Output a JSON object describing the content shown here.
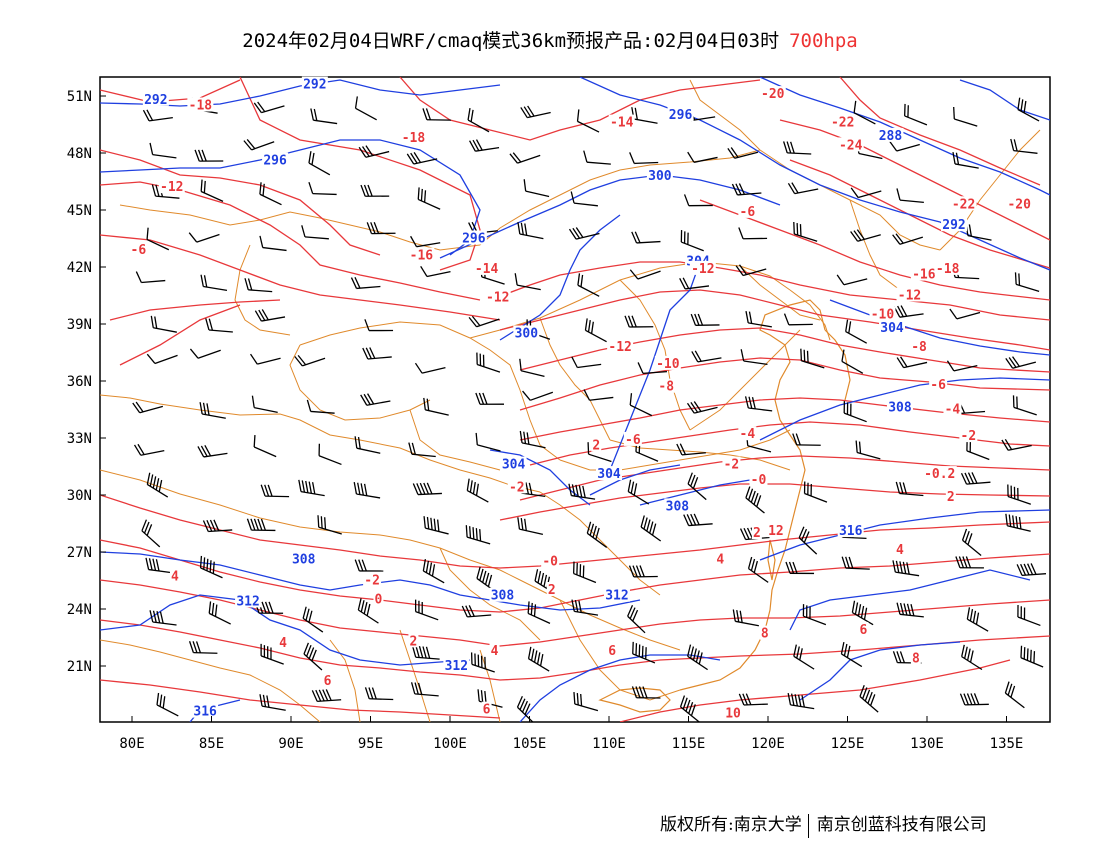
{
  "title": {
    "main": "2024年02月04日WRF/cmaq模式36km预报产品:02月04日03时",
    "level": "700hpa"
  },
  "map": {
    "lon_labels": [
      "80E",
      "85E",
      "90E",
      "95E",
      "100E",
      "105E",
      "110E",
      "115E",
      "120E",
      "125E",
      "130E",
      "135E"
    ],
    "lat_labels": [
      "51N",
      "48N",
      "45N",
      "42N",
      "39N",
      "36N",
      "33N",
      "30N",
      "27N",
      "24N",
      "21N"
    ],
    "colors": {
      "temperature": "#e8383b",
      "geopotential": "#1f3fe0",
      "boundary": "#e08a2c",
      "wind": "#000000"
    },
    "geopotential_labels": [
      {
        "text": "292",
        "lon": 81.5,
        "lat": 50.8
      },
      {
        "text": "292",
        "lon": 91.5,
        "lat": 51.6
      },
      {
        "text": "296",
        "lon": 89.0,
        "lat": 47.6
      },
      {
        "text": "296",
        "lon": 101.5,
        "lat": 43.5
      },
      {
        "text": "296",
        "lon": 114.5,
        "lat": 50.0
      },
      {
        "text": "300",
        "lon": 113.2,
        "lat": 46.8
      },
      {
        "text": "288",
        "lon": 127.7,
        "lat": 48.9
      },
      {
        "text": "292",
        "lon": 131.7,
        "lat": 44.2
      },
      {
        "text": "304",
        "lon": 115.6,
        "lat": 42.3
      },
      {
        "text": "300",
        "lon": 104.8,
        "lat": 38.5
      },
      {
        "text": "304",
        "lon": 127.8,
        "lat": 38.8
      },
      {
        "text": "308",
        "lon": 128.3,
        "lat": 34.6
      },
      {
        "text": "304",
        "lon": 104.0,
        "lat": 31.6
      },
      {
        "text": "304",
        "lon": 110.0,
        "lat": 31.1
      },
      {
        "text": "308",
        "lon": 114.3,
        "lat": 29.4
      },
      {
        "text": "316",
        "lon": 125.2,
        "lat": 28.1
      },
      {
        "text": "308",
        "lon": 90.8,
        "lat": 26.6
      },
      {
        "text": "312",
        "lon": 87.3,
        "lat": 24.4
      },
      {
        "text": "308",
        "lon": 103.3,
        "lat": 24.7
      },
      {
        "text": "312",
        "lon": 110.5,
        "lat": 24.7
      },
      {
        "text": "312",
        "lon": 100.4,
        "lat": 21.0
      },
      {
        "text": "316",
        "lon": 84.6,
        "lat": 18.6
      }
    ],
    "temperature_labels": [
      {
        "text": "-18",
        "lon": 84.3,
        "lat": 50.5
      },
      {
        "text": "-18",
        "lon": 97.7,
        "lat": 48.8
      },
      {
        "text": "-14",
        "lon": 110.8,
        "lat": 49.6
      },
      {
        "text": "-20",
        "lon": 120.3,
        "lat": 51.1
      },
      {
        "text": "-22",
        "lon": 124.7,
        "lat": 49.6
      },
      {
        "text": "-24",
        "lon": 125.2,
        "lat": 48.4
      },
      {
        "text": "-22",
        "lon": 132.3,
        "lat": 45.3
      },
      {
        "text": "-20",
        "lon": 135.8,
        "lat": 45.3
      },
      {
        "text": "-12",
        "lon": 82.5,
        "lat": 46.2
      },
      {
        "text": "-6",
        "lon": 80.4,
        "lat": 42.9
      },
      {
        "text": "-16",
        "lon": 98.2,
        "lat": 42.6
      },
      {
        "text": "-14",
        "lon": 102.3,
        "lat": 41.9
      },
      {
        "text": "-12",
        "lon": 103.0,
        "lat": 40.4
      },
      {
        "text": "-12",
        "lon": 115.9,
        "lat": 41.9
      },
      {
        "text": "-6",
        "lon": 118.7,
        "lat": 44.9
      },
      {
        "text": "-16",
        "lon": 129.8,
        "lat": 41.6
      },
      {
        "text": "-18",
        "lon": 131.3,
        "lat": 41.9
      },
      {
        "text": "-12",
        "lon": 128.9,
        "lat": 40.5
      },
      {
        "text": "-10",
        "lon": 127.2,
        "lat": 39.5
      },
      {
        "text": "-12",
        "lon": 110.7,
        "lat": 37.8
      },
      {
        "text": "-10",
        "lon": 113.7,
        "lat": 36.9
      },
      {
        "text": "-8",
        "lon": 113.6,
        "lat": 35.7
      },
      {
        "text": "-8",
        "lon": 129.5,
        "lat": 37.8
      },
      {
        "text": "-6",
        "lon": 130.7,
        "lat": 35.8
      },
      {
        "text": "-4",
        "lon": 131.6,
        "lat": 34.5
      },
      {
        "text": "-6",
        "lon": 111.5,
        "lat": 32.9
      },
      {
        "text": "-4",
        "lon": 118.7,
        "lat": 33.2
      },
      {
        "text": "-2",
        "lon": 132.6,
        "lat": 33.1
      },
      {
        "text": "-2",
        "lon": 117.7,
        "lat": 31.6
      },
      {
        "text": "-0",
        "lon": 119.4,
        "lat": 30.8
      },
      {
        "text": "-0.2",
        "lon": 130.8,
        "lat": 31.1
      },
      {
        "text": "2",
        "lon": 131.5,
        "lat": 29.9
      },
      {
        "text": "2",
        "lon": 109.2,
        "lat": 32.6
      },
      {
        "text": "-2",
        "lon": 104.2,
        "lat": 30.4
      },
      {
        "text": "2",
        "lon": 119.3,
        "lat": 28.0
      },
      {
        "text": "12",
        "lon": 120.5,
        "lat": 28.1
      },
      {
        "text": "4",
        "lon": 117.0,
        "lat": 26.6
      },
      {
        "text": "4",
        "lon": 128.3,
        "lat": 27.1
      },
      {
        "text": "-0",
        "lon": 106.3,
        "lat": 26.5
      },
      {
        "text": "2",
        "lon": 106.4,
        "lat": 25.0
      },
      {
        "text": "-2",
        "lon": 95.1,
        "lat": 25.5
      },
      {
        "text": "0",
        "lon": 95.5,
        "lat": 24.5
      },
      {
        "text": "4",
        "lon": 82.7,
        "lat": 25.7
      },
      {
        "text": "4",
        "lon": 89.5,
        "lat": 22.2
      },
      {
        "text": "2",
        "lon": 97.7,
        "lat": 22.3
      },
      {
        "text": "4",
        "lon": 102.8,
        "lat": 21.8
      },
      {
        "text": "6",
        "lon": 110.2,
        "lat": 21.8
      },
      {
        "text": "8",
        "lon": 119.8,
        "lat": 22.7
      },
      {
        "text": "6",
        "lon": 126.0,
        "lat": 22.9
      },
      {
        "text": "8",
        "lon": 129.3,
        "lat": 21.4
      },
      {
        "text": "6",
        "lon": 92.3,
        "lat": 20.2
      },
      {
        "text": "6",
        "lon": 102.3,
        "lat": 18.7
      },
      {
        "text": "10",
        "lon": 117.8,
        "lat": 18.5
      }
    ]
  },
  "footer": {
    "left": "版权所有:南京大学",
    "right": "南京创蓝科技有限公司"
  }
}
